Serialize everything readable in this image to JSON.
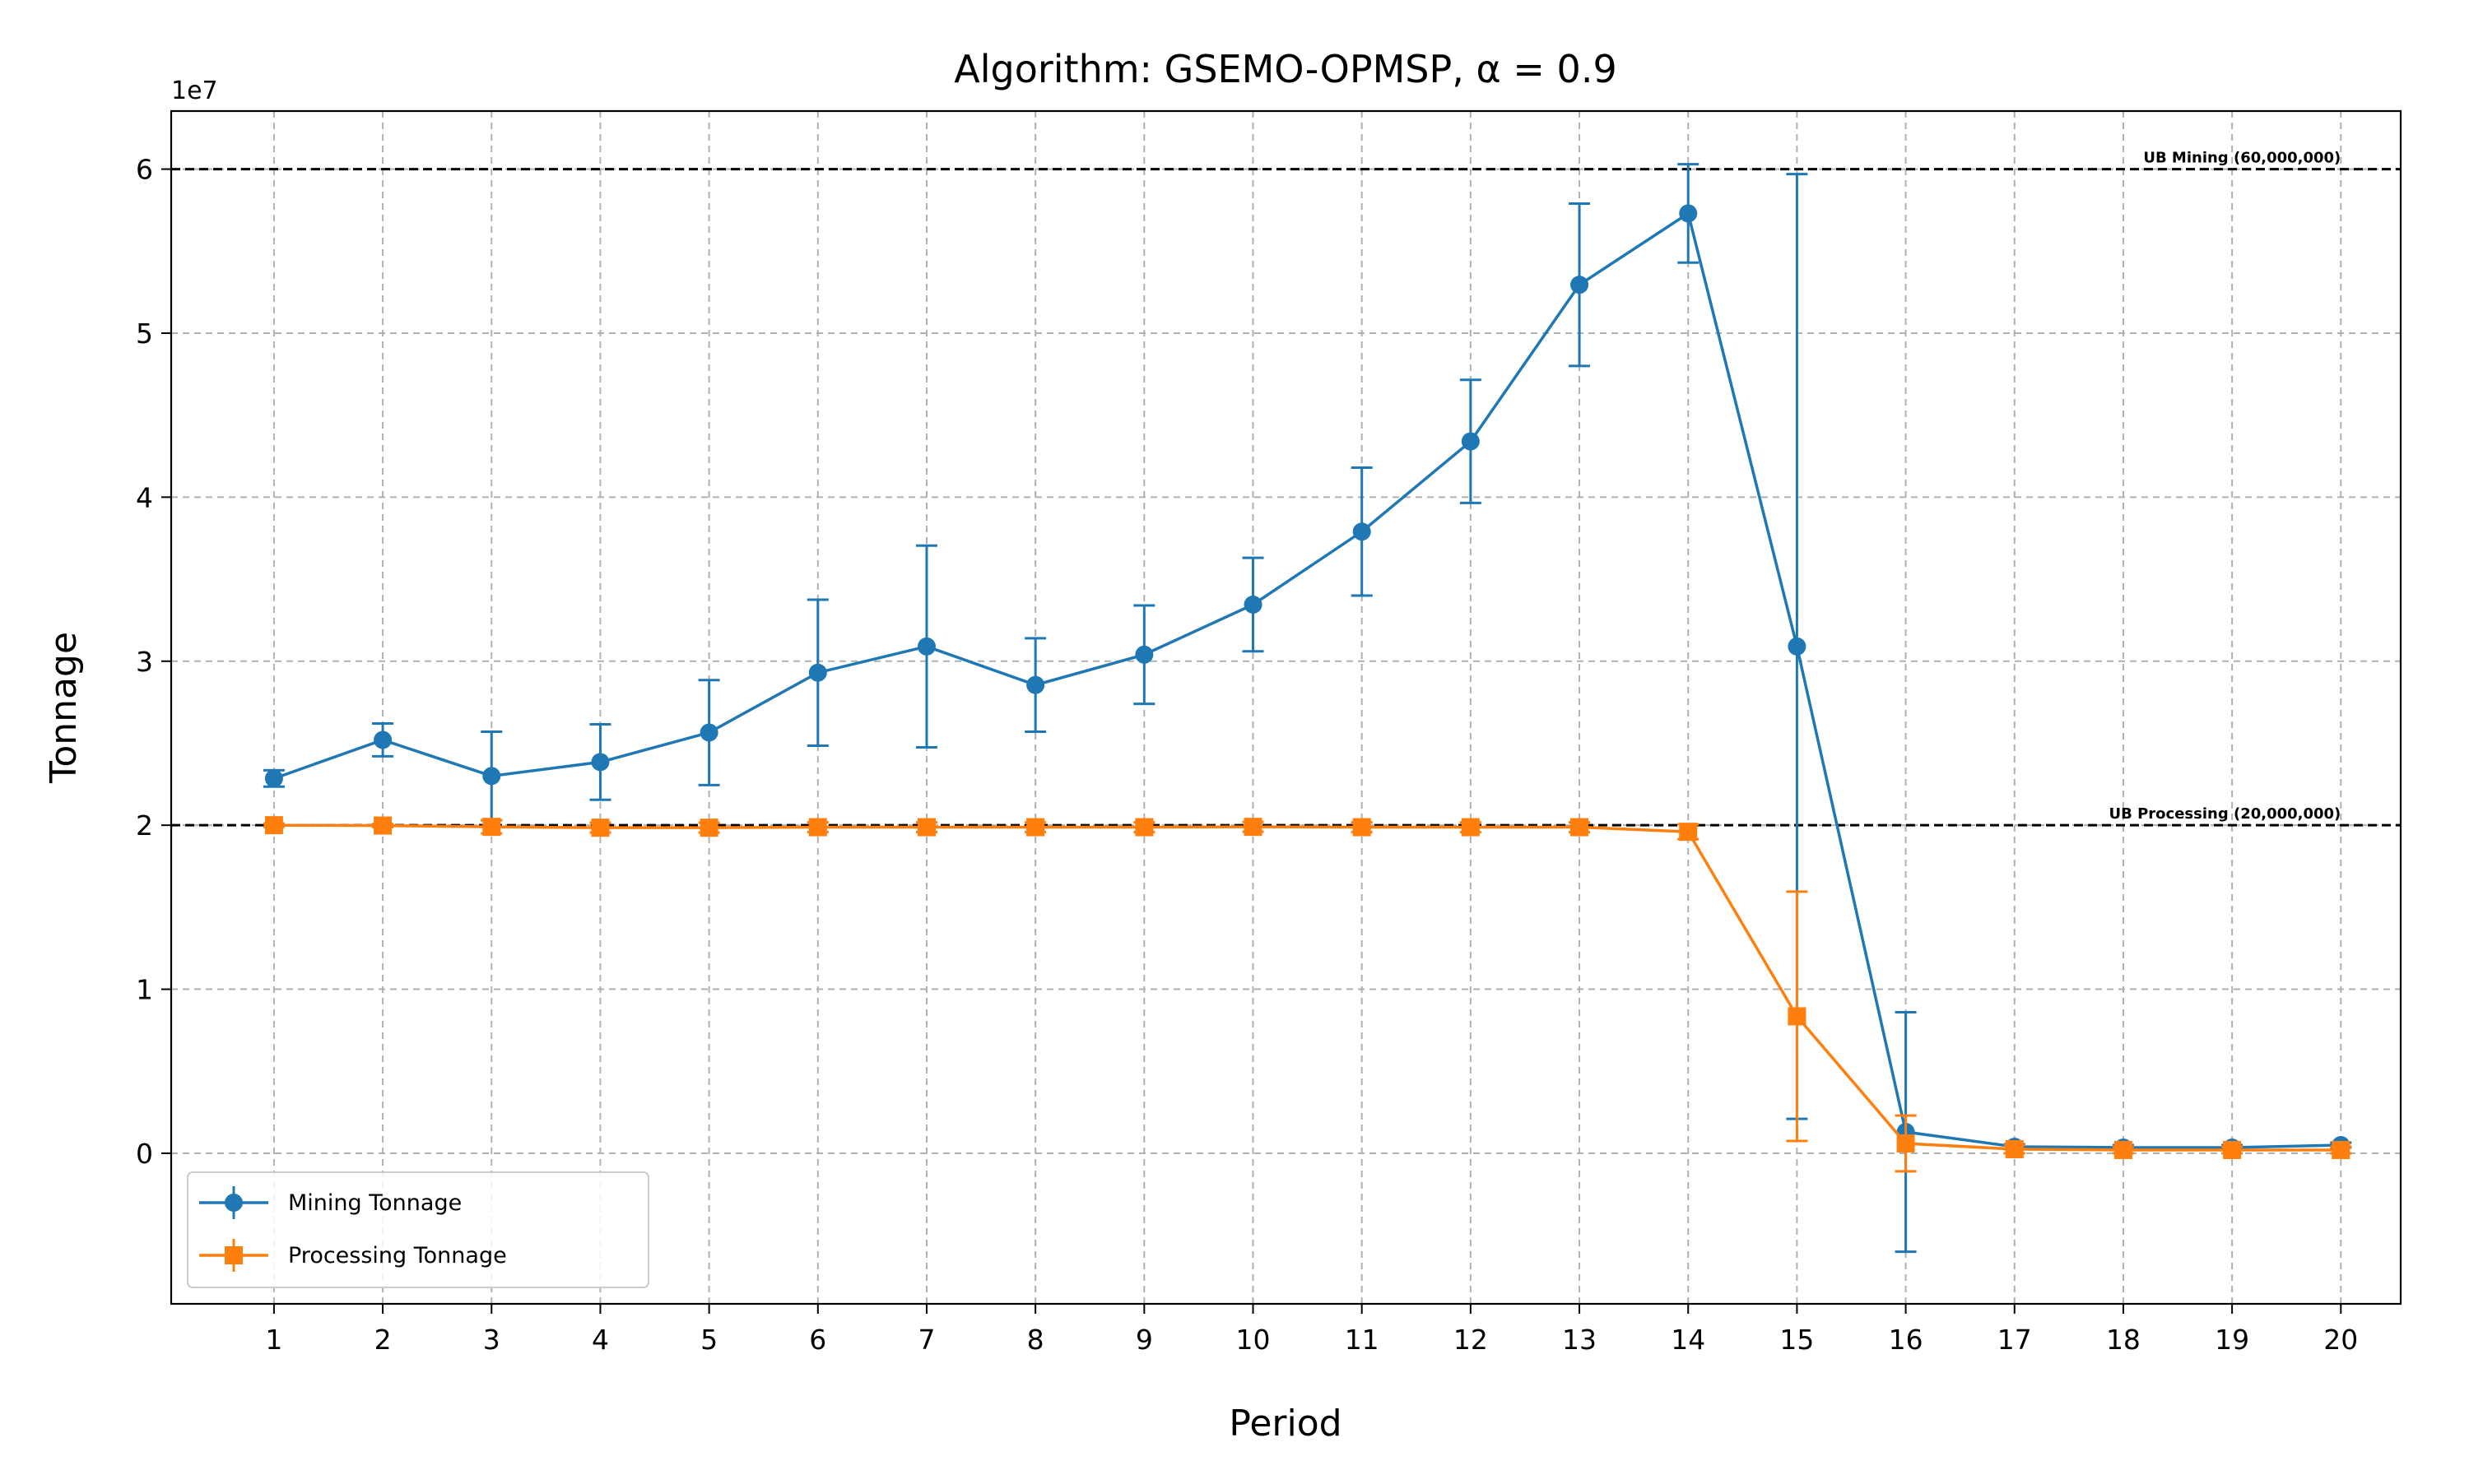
{
  "chart_data": {
    "type": "line",
    "title": "Algorithm: GSEMO-OPMSP, α = 0.9",
    "xlabel": "Period",
    "ylabel": "Tonnage",
    "y_offset_label": "1e7",
    "xlim": [
      0.055,
      20.55
    ],
    "ylim": [
      -9180000,
      63540000
    ],
    "x": [
      1,
      2,
      3,
      4,
      5,
      6,
      7,
      8,
      9,
      10,
      11,
      12,
      13,
      14,
      15,
      16,
      17,
      18,
      19,
      20
    ],
    "xticks": [
      "1",
      "2",
      "3",
      "4",
      "5",
      "6",
      "7",
      "8",
      "9",
      "10",
      "11",
      "12",
      "13",
      "14",
      "15",
      "16",
      "17",
      "18",
      "19",
      "20"
    ],
    "yticks": [
      0,
      10000000,
      20000000,
      30000000,
      40000000,
      50000000,
      60000000
    ],
    "ytick_labels": [
      "0",
      "1",
      "2",
      "3",
      "4",
      "5",
      "6"
    ],
    "grid": true,
    "legend_position": "lower-left",
    "series": [
      {
        "name": "Mining Tonnage",
        "color": "#1f77b4",
        "marker": "circle",
        "values": [
          22850000,
          25200000,
          23000000,
          23850000,
          25650000,
          29300000,
          30900000,
          28550000,
          30400000,
          33450000,
          37900000,
          43400000,
          52950000,
          57300000,
          30900000,
          1300000,
          400000,
          350000,
          350000,
          500000
        ],
        "errors": [
          500000,
          1000000,
          2700000,
          2300000,
          3200000,
          4450000,
          6150000,
          2850000,
          3000000,
          2850000,
          3900000,
          3750000,
          4950000,
          3000000,
          28800000,
          7300000,
          150000,
          150000,
          150000,
          150000
        ]
      },
      {
        "name": "Processing Tonnage",
        "color": "#ff7f0e",
        "marker": "square",
        "values": [
          20000000,
          19980000,
          19900000,
          19850000,
          19850000,
          19880000,
          19880000,
          19880000,
          19880000,
          19900000,
          19880000,
          19880000,
          19880000,
          19600000,
          8350000,
          600000,
          250000,
          200000,
          200000,
          200000
        ],
        "errors": [
          100000,
          100000,
          400000,
          300000,
          300000,
          300000,
          300000,
          300000,
          300000,
          300000,
          300000,
          300000,
          300000,
          450000,
          7600000,
          1700000,
          250000,
          200000,
          200000,
          200000
        ]
      }
    ],
    "reference_lines": [
      {
        "label": "UB Mining (60,000,000)",
        "value": 60000000,
        "color": "#000000"
      },
      {
        "label": "UB Processing (20,000,000)",
        "value": 20000000,
        "color": "#000000"
      }
    ]
  }
}
